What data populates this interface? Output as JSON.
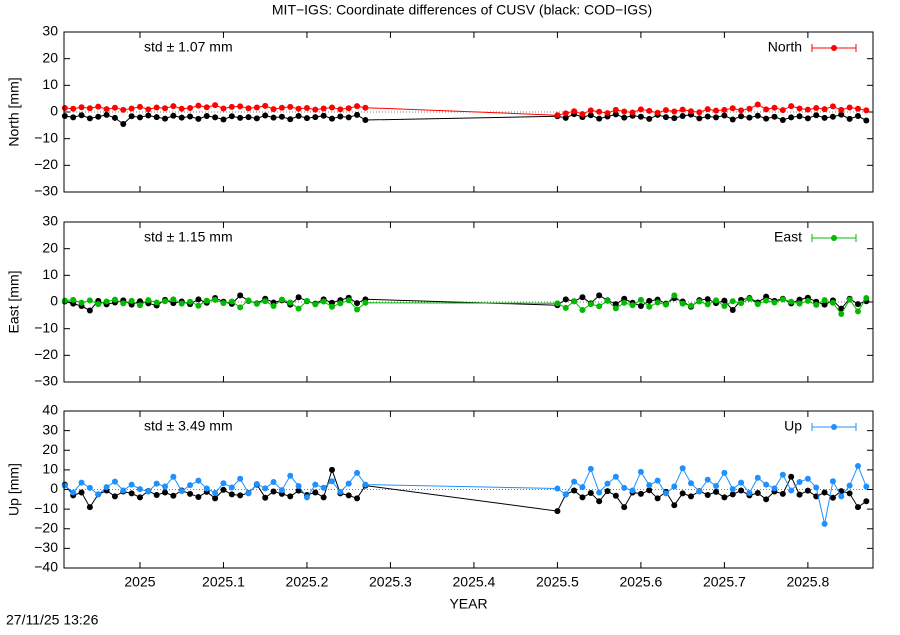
{
  "title": "MIT−IGS: Coordinate differences of CUSV (black: COD−IGS)",
  "timestamp": "27/11/25 13:26",
  "chart_data": [
    {
      "type": "line",
      "y_label": "North [mm]",
      "annotation": "std ± 1.07 mm",
      "legend": "top-right",
      "xlim": [
        2024.909,
        2025.878
      ],
      "xticks": [
        2025,
        2025.1,
        2025.2,
        2025.3,
        2025.4,
        2025.5,
        2025.6,
        2025.7,
        2025.8
      ],
      "ylim": [
        -30,
        30
      ],
      "yticks": [
        {
          "value": -30,
          "label": "−30"
        },
        {
          "value": -20,
          "label": "−20"
        },
        {
          "value": -10,
          "label": "−10"
        },
        0,
        10,
        20,
        30
      ],
      "x": [
        2024.91,
        2024.92,
        2024.93,
        2024.94,
        2024.95,
        2024.96,
        2024.97,
        2024.98,
        2024.99,
        2025.0,
        2025.01,
        2025.02,
        2025.03,
        2025.04,
        2025.05,
        2025.06,
        2025.07,
        2025.08,
        2025.09,
        2025.1,
        2025.11,
        2025.12,
        2025.13,
        2025.14,
        2025.15,
        2025.16,
        2025.17,
        2025.18,
        2025.19,
        2025.2,
        2025.21,
        2025.22,
        2025.23,
        2025.24,
        2025.25,
        2025.26,
        2025.27,
        2025.5,
        2025.51,
        2025.52,
        2025.53,
        2025.54,
        2025.55,
        2025.56,
        2025.57,
        2025.58,
        2025.59,
        2025.6,
        2025.61,
        2025.62,
        2025.63,
        2025.64,
        2025.65,
        2025.66,
        2025.67,
        2025.68,
        2025.69,
        2025.7,
        2025.71,
        2025.72,
        2025.73,
        2025.74,
        2025.75,
        2025.76,
        2025.77,
        2025.78,
        2025.79,
        2025.8,
        2025.81,
        2025.82,
        2025.83,
        2025.84,
        2025.85,
        2025.86,
        2025.87
      ],
      "series": [
        {
          "color": "#000000",
          "values": [
            -1.5,
            -2.0,
            -1.2,
            -2.4,
            -1.8,
            -1.1,
            -2.2,
            -4.5,
            -1.6,
            -2.0,
            -1.3,
            -1.9,
            -2.5,
            -1.4,
            -2.1,
            -1.7,
            -2.6,
            -1.5,
            -2.0,
            -2.8,
            -1.6,
            -2.2,
            -1.9,
            -2.4,
            -1.3,
            -2.1,
            -1.8,
            -2.7,
            -1.5,
            -2.3,
            -1.9,
            -1.4,
            -2.5,
            -1.7,
            -2.0,
            -1.1,
            -3.0,
            -1.6,
            -2.2,
            -0.8,
            -1.9,
            -1.2,
            -2.5,
            -1.7,
            -0.9,
            -2.1,
            -1.4,
            -1.8,
            -2.6,
            -1.1,
            -1.9,
            -2.3,
            -1.5,
            -1.0,
            -2.4,
            -1.7,
            -2.0,
            -1.3,
            -2.8,
            -1.6,
            -2.1,
            -1.4,
            -2.5,
            -1.8,
            -3.0,
            -2.0,
            -1.6,
            -2.4,
            -1.2,
            -2.2,
            -1.8,
            -1.0,
            -2.6,
            -1.5,
            -3.2
          ]
        },
        {
          "name": "North",
          "color": "#ff0000",
          "values": [
            1.5,
            1.2,
            1.8,
            1.4,
            2.0,
            1.1,
            1.6,
            0.8,
            1.3,
            1.9,
            1.0,
            1.7,
            1.4,
            2.2,
            1.2,
            1.5,
            2.4,
            1.8,
            2.6,
            1.3,
            1.9,
            2.1,
            1.4,
            1.7,
            2.3,
            1.1,
            1.6,
            1.9,
            1.2,
            1.5,
            0.9,
            1.3,
            1.7,
            1.0,
            1.4,
            2.2,
            1.6,
            -1.2,
            -0.5,
            0.3,
            -0.8,
            0.6,
            0.1,
            -0.4,
            0.8,
            0.2,
            -0.2,
            1.0,
            0.4,
            -0.3,
            0.7,
            0.2,
            0.9,
            0.3,
            -0.1,
            1.1,
            0.5,
            0.8,
            1.4,
            0.6,
            1.2,
            2.8,
            1.0,
            1.6,
            0.7,
            2.2,
            1.3,
            0.9,
            1.5,
            1.1,
            2.1,
            0.8,
            1.7,
            1.2,
            0.6
          ]
        }
      ]
    },
    {
      "type": "line",
      "y_label": "East [mm]",
      "annotation": "std ± 1.15 mm",
      "legend": "top-right",
      "xlim": [
        2024.909,
        2025.878
      ],
      "xticks": [
        2025,
        2025.1,
        2025.2,
        2025.3,
        2025.4,
        2025.5,
        2025.6,
        2025.7,
        2025.8
      ],
      "ylim": [
        -30,
        30
      ],
      "yticks": [
        {
          "value": -30,
          "label": "−30"
        },
        {
          "value": -20,
          "label": "−20"
        },
        {
          "value": -10,
          "label": "−10"
        },
        0,
        10,
        20,
        30
      ],
      "x": [
        2024.91,
        2024.92,
        2024.93,
        2024.94,
        2024.95,
        2024.96,
        2024.97,
        2024.98,
        2024.99,
        2025.0,
        2025.01,
        2025.02,
        2025.03,
        2025.04,
        2025.05,
        2025.06,
        2025.07,
        2025.08,
        2025.09,
        2025.1,
        2025.11,
        2025.12,
        2025.13,
        2025.14,
        2025.15,
        2025.16,
        2025.17,
        2025.18,
        2025.19,
        2025.2,
        2025.21,
        2025.22,
        2025.23,
        2025.24,
        2025.25,
        2025.26,
        2025.27,
        2025.5,
        2025.51,
        2025.52,
        2025.53,
        2025.54,
        2025.55,
        2025.56,
        2025.57,
        2025.58,
        2025.59,
        2025.6,
        2025.61,
        2025.62,
        2025.63,
        2025.64,
        2025.65,
        2025.66,
        2025.67,
        2025.68,
        2025.69,
        2025.7,
        2025.71,
        2025.72,
        2025.73,
        2025.74,
        2025.75,
        2025.76,
        2025.77,
        2025.78,
        2025.79,
        2025.8,
        2025.81,
        2025.82,
        2025.83,
        2025.84,
        2025.85,
        2025.86,
        2025.87
      ],
      "series": [
        {
          "color": "#000000",
          "values": [
            0.2,
            -0.6,
            -1.5,
            -3.2,
            0.4,
            -0.9,
            -0.2,
            0.6,
            -1.0,
            0.3,
            -0.5,
            -1.3,
            0.8,
            -0.4,
            0.2,
            -0.8,
            1.0,
            -0.3,
            1.5,
            0.1,
            -0.7,
            2.5,
            0.4,
            -0.5,
            1.2,
            -0.2,
            0.6,
            -1.0,
            1.8,
            0.3,
            -0.6,
            1.0,
            -0.3,
            0.7,
            1.6,
            -0.4,
            1.0,
            -1.2,
            1.0,
            0.3,
            1.8,
            -0.5,
            2.5,
            0.6,
            -0.8,
            1.2,
            -0.3,
            -1.5,
            0.4,
            0.9,
            -0.6,
            1.4,
            0.2,
            -1.8,
            0.7,
            1.1,
            -0.4,
            0.5,
            -3.0,
            0.8,
            1.5,
            -0.2,
            2.0,
            0.4,
            1.2,
            -0.5,
            0.9,
            1.6,
            0.1,
            -1.0,
            0.6,
            -2.5,
            1.2,
            -0.8,
            0.3
          ]
        },
        {
          "name": "East",
          "color": "#00bb00",
          "values": [
            0.5,
            0.8,
            -0.3,
            0.6,
            -0.8,
            0.2,
            0.9,
            -0.5,
            0.4,
            -1.2,
            0.7,
            -0.2,
            0.3,
            1.0,
            -0.6,
            0.1,
            -1.4,
            0.5,
            0.8,
            -0.4,
            0.2,
            -2.0,
            0.6,
            -0.7,
            0.3,
            -1.5,
            0.9,
            -0.2,
            -2.5,
            0.4,
            -0.9,
            0.2,
            -1.8,
            -0.5,
            0.6,
            -2.8,
            -0.3,
            -0.5,
            -2.2,
            0.3,
            -3.0,
            -0.8,
            -1.6,
            0.4,
            -2.4,
            -0.3,
            -1.2,
            0.8,
            -1.8,
            -0.2,
            -1.0,
            2.5,
            -0.6,
            -1.4,
            0.2,
            -0.9,
            0.6,
            -1.5,
            0.3,
            -0.4,
            1.2,
            -0.8,
            0.5,
            -0.2,
            1.0,
            0.1,
            -0.6,
            0.4,
            -1.1,
            0.7,
            -0.3,
            -4.5,
            0.9,
            -3.5,
            1.5
          ]
        }
      ]
    },
    {
      "type": "line",
      "y_label": "Up [mm]",
      "annotation": "std ± 3.49 mm",
      "legend": "top-right",
      "x_label": "YEAR",
      "xlim": [
        2024.909,
        2025.878
      ],
      "xticks": [
        2025,
        2025.1,
        2025.2,
        2025.3,
        2025.4,
        2025.5,
        2025.6,
        2025.7,
        2025.8
      ],
      "ylim": [
        -40,
        40
      ],
      "yticks": [
        {
          "value": -40,
          "label": "−40"
        },
        {
          "value": -30,
          "label": "−30"
        },
        {
          "value": -20,
          "label": "−20"
        },
        {
          "value": -10,
          "label": "−10"
        },
        0,
        10,
        20,
        30,
        40
      ],
      "x": [
        2024.91,
        2024.92,
        2024.93,
        2024.94,
        2024.95,
        2024.96,
        2024.97,
        2024.98,
        2024.99,
        2025.0,
        2025.01,
        2025.02,
        2025.03,
        2025.04,
        2025.05,
        2025.06,
        2025.07,
        2025.08,
        2025.09,
        2025.1,
        2025.11,
        2025.12,
        2025.13,
        2025.14,
        2025.15,
        2025.16,
        2025.17,
        2025.18,
        2025.19,
        2025.2,
        2025.21,
        2025.22,
        2025.23,
        2025.24,
        2025.25,
        2025.26,
        2025.27,
        2025.5,
        2025.51,
        2025.52,
        2025.53,
        2025.54,
        2025.55,
        2025.56,
        2025.57,
        2025.58,
        2025.59,
        2025.6,
        2025.61,
        2025.62,
        2025.63,
        2025.64,
        2025.65,
        2025.66,
        2025.67,
        2025.68,
        2025.69,
        2025.7,
        2025.71,
        2025.72,
        2025.73,
        2025.74,
        2025.75,
        2025.76,
        2025.77,
        2025.78,
        2025.79,
        2025.8,
        2025.81,
        2025.82,
        2025.83,
        2025.84,
        2025.85,
        2025.86,
        2025.87
      ],
      "series": [
        {
          "color": "#000000",
          "values": [
            2.5,
            -3.0,
            -1.5,
            -9.0,
            -2.5,
            -0.5,
            -3.5,
            -1.0,
            -2.0,
            -4.0,
            -0.8,
            -2.8,
            -1.5,
            -3.2,
            -0.5,
            -2.2,
            -3.8,
            -1.2,
            -4.5,
            -0.2,
            -2.5,
            -3.0,
            -1.8,
            2.5,
            -4.2,
            -1.0,
            -2.2,
            -3.5,
            -0.6,
            -2.8,
            -1.5,
            -4.0,
            10.0,
            -2.0,
            -3.0,
            -4.5,
            2.0,
            -11.0,
            -2.5,
            -0.5,
            -4.0,
            -1.8,
            -6.0,
            -0.8,
            -3.2,
            -9.0,
            -1.5,
            -2.2,
            -0.4,
            -4.5,
            -1.2,
            -8.0,
            -2.0,
            -3.5,
            -0.8,
            -2.8,
            -1.2,
            -4.0,
            -2.5,
            -0.5,
            -3.0,
            -1.8,
            -5.0,
            -1.0,
            -2.2,
            6.5,
            -2.6,
            -0.6,
            -3.5,
            -1.5,
            -4.2,
            -0.8,
            -2.0,
            -9.0,
            -6.0
          ]
        },
        {
          "name": "Up",
          "color": "#1e90ff",
          "values": [
            2.0,
            -1.5,
            3.5,
            0.8,
            -2.5,
            1.2,
            4.0,
            -0.5,
            2.5,
            0.2,
            -1.0,
            3.0,
            1.5,
            6.5,
            -0.8,
            2.2,
            4.5,
            0.5,
            -1.8,
            3.2,
            1.0,
            5.5,
            -2.0,
            2.8,
            0.6,
            3.8,
            -0.3,
            7.0,
            1.8,
            -4.0,
            2.5,
            0.9,
            4.2,
            -1.2,
            3.0,
            8.5,
            2.5,
            0.5,
            -2.5,
            4.0,
            1.2,
            10.5,
            -1.5,
            3.0,
            6.5,
            0.8,
            -0.5,
            9.0,
            2.2,
            4.5,
            -2.0,
            1.5,
            10.8,
            3.2,
            -1.0,
            5.0,
            1.8,
            8.5,
            0.2,
            3.5,
            -1.8,
            6.0,
            2.5,
            0.6,
            7.5,
            -0.5,
            3.8,
            5.5,
            1.0,
            -17.5,
            4.2,
            -3.5,
            2.0,
            12.0,
            1.5
          ]
        }
      ]
    }
  ]
}
